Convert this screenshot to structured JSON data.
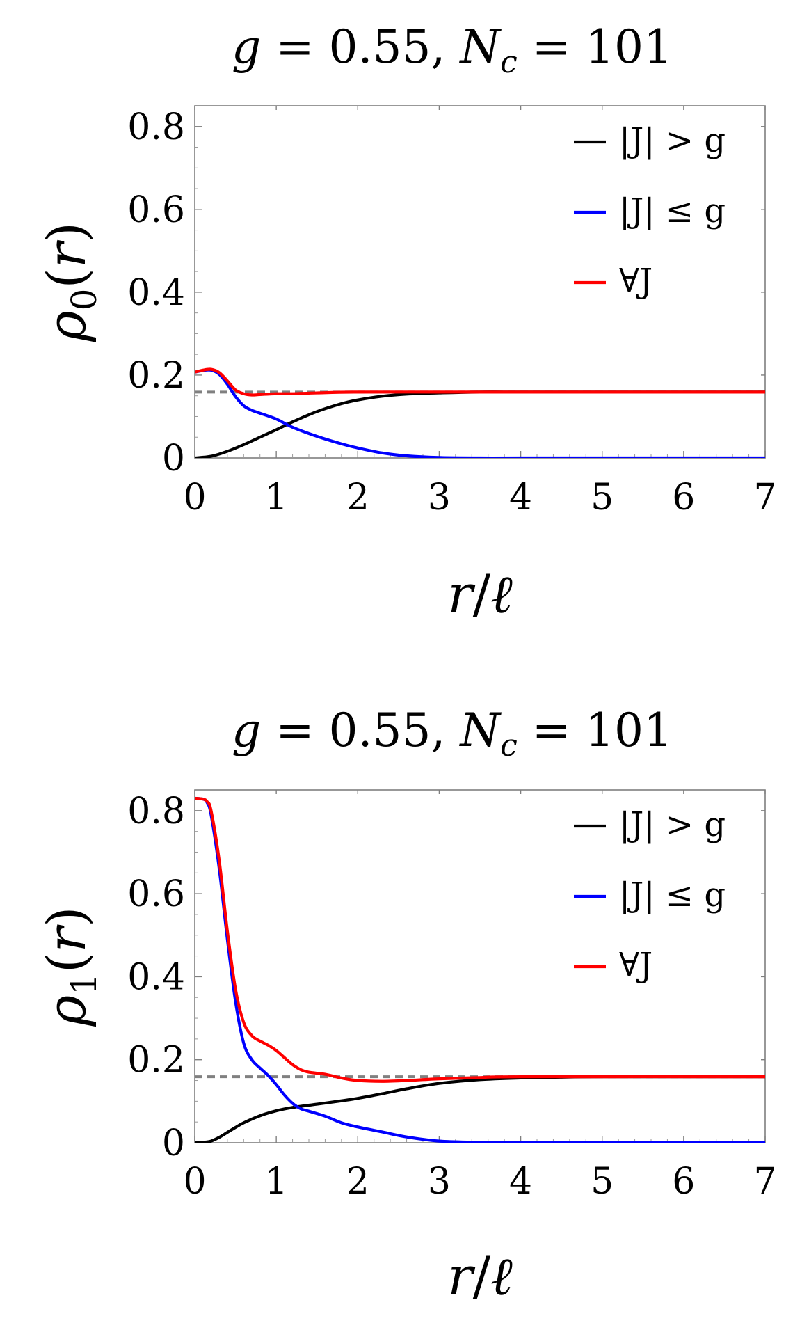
{
  "chart_data": [
    {
      "type": "line",
      "title": "g = 0.55, N_c = 101",
      "title_parts": {
        "g": "g",
        "eq1": " = 0.55, ",
        "N": "N",
        "sub": "c",
        "eq2": " = 101"
      },
      "xlabel": "r/ℓ",
      "xlabel_parts": {
        "r": "r",
        "slash": "/",
        "ell": "ℓ"
      },
      "ylabel": "ρ0(r)",
      "ylabel_parts": {
        "rho": "ρ",
        "sub": "0",
        "open": "(",
        "r": "r",
        "close": ")"
      },
      "xlim": [
        0,
        7
      ],
      "ylim": [
        0,
        0.85
      ],
      "xticks": [
        0,
        1,
        2,
        3,
        4,
        5,
        6,
        7
      ],
      "xtick_labels": [
        "0",
        "1",
        "2",
        "3",
        "4",
        "5",
        "6",
        "7"
      ],
      "yticks": [
        0,
        0.2,
        0.4,
        0.6,
        0.8
      ],
      "ytick_labels": [
        "0",
        "0.2",
        "0.4",
        "0.6",
        "0.8"
      ],
      "grid": false,
      "legend_position": "top-right",
      "reference_line": {
        "y": 0.159,
        "style": "dashed",
        "color": "#808080"
      },
      "series": [
        {
          "name": "|J| > g",
          "color": "#000000",
          "x": [
            0,
            0.2,
            0.4,
            0.6,
            0.8,
            1.0,
            1.2,
            1.5,
            1.8,
            2.0,
            2.3,
            2.6,
            3.0,
            3.5,
            4.0,
            5.0,
            6.0,
            7.0
          ],
          "y": [
            0,
            0.004,
            0.016,
            0.032,
            0.05,
            0.068,
            0.087,
            0.112,
            0.131,
            0.14,
            0.149,
            0.154,
            0.157,
            0.159,
            0.159,
            0.159,
            0.159,
            0.159
          ]
        },
        {
          "name": "|J| ≤ g",
          "color": "#0000ff",
          "x": [
            0,
            0.1,
            0.2,
            0.3,
            0.4,
            0.5,
            0.6,
            0.7,
            0.8,
            1.0,
            1.2,
            1.5,
            1.8,
            2.0,
            2.3,
            2.6,
            3.0,
            3.5,
            4.0,
            5.0,
            7.0
          ],
          "y": [
            0.207,
            0.211,
            0.212,
            0.202,
            0.178,
            0.148,
            0.126,
            0.115,
            0.108,
            0.094,
            0.074,
            0.052,
            0.034,
            0.024,
            0.012,
            0.005,
            0.001,
            0,
            0,
            0,
            0
          ]
        },
        {
          "name": "∀J",
          "color": "#ff0000",
          "x": [
            0,
            0.1,
            0.2,
            0.3,
            0.4,
            0.5,
            0.6,
            0.7,
            0.8,
            1.0,
            1.2,
            1.5,
            2.0,
            3.0,
            4.0,
            7.0
          ],
          "y": [
            0.207,
            0.212,
            0.214,
            0.206,
            0.186,
            0.164,
            0.155,
            0.152,
            0.153,
            0.155,
            0.155,
            0.157,
            0.159,
            0.159,
            0.159,
            0.159
          ]
        }
      ]
    },
    {
      "type": "line",
      "title": "g = 0.55, N_c = 101",
      "title_parts": {
        "g": "g",
        "eq1": " = 0.55, ",
        "N": "N",
        "sub": "c",
        "eq2": " = 101"
      },
      "xlabel": "r/ℓ",
      "xlabel_parts": {
        "r": "r",
        "slash": "/",
        "ell": "ℓ"
      },
      "ylabel": "ρ1(r)",
      "ylabel_parts": {
        "rho": "ρ",
        "sub": "1",
        "open": "(",
        "r": "r",
        "close": ")"
      },
      "xlim": [
        0,
        7
      ],
      "ylim": [
        0,
        0.85
      ],
      "xticks": [
        0,
        1,
        2,
        3,
        4,
        5,
        6,
        7
      ],
      "xtick_labels": [
        "0",
        "1",
        "2",
        "3",
        "4",
        "5",
        "6",
        "7"
      ],
      "yticks": [
        0,
        0.2,
        0.4,
        0.6,
        0.8
      ],
      "ytick_labels": [
        "0",
        "0.2",
        "0.4",
        "0.6",
        "0.8"
      ],
      "grid": false,
      "legend_position": "top-right",
      "reference_line": {
        "y": 0.159,
        "style": "dashed",
        "color": "#808080"
      },
      "series": [
        {
          "name": "|J| > g",
          "color": "#000000",
          "x": [
            0,
            0.1,
            0.2,
            0.3,
            0.4,
            0.5,
            0.6,
            0.8,
            1.0,
            1.2,
            1.5,
            1.8,
            2.0,
            2.3,
            2.6,
            3.0,
            3.5,
            4.0,
            4.5,
            5.0,
            7.0
          ],
          "y": [
            0,
            0.001,
            0.004,
            0.013,
            0.025,
            0.037,
            0.048,
            0.065,
            0.077,
            0.085,
            0.093,
            0.101,
            0.107,
            0.118,
            0.13,
            0.143,
            0.152,
            0.156,
            0.158,
            0.159,
            0.159
          ]
        },
        {
          "name": "|J| ≤ g",
          "color": "#0000ff",
          "x": [
            0,
            0.1,
            0.15,
            0.2,
            0.3,
            0.4,
            0.5,
            0.6,
            0.7,
            0.8,
            0.9,
            1.0,
            1.1,
            1.2,
            1.3,
            1.4,
            1.6,
            1.8,
            2.0,
            2.3,
            2.6,
            3.0,
            3.5,
            4.0,
            7.0
          ],
          "y": [
            0.83,
            0.828,
            0.82,
            0.79,
            0.66,
            0.49,
            0.34,
            0.24,
            0.2,
            0.18,
            0.162,
            0.14,
            0.115,
            0.095,
            0.082,
            0.076,
            0.064,
            0.048,
            0.038,
            0.026,
            0.014,
            0.004,
            0.001,
            0,
            0
          ]
        },
        {
          "name": "∀J",
          "color": "#ff0000",
          "x": [
            0,
            0.1,
            0.15,
            0.2,
            0.3,
            0.4,
            0.5,
            0.6,
            0.7,
            0.8,
            0.9,
            1.0,
            1.1,
            1.2,
            1.3,
            1.4,
            1.6,
            1.8,
            2.0,
            2.3,
            2.6,
            3.0,
            3.5,
            4.0,
            7.0
          ],
          "y": [
            0.83,
            0.828,
            0.822,
            0.8,
            0.68,
            0.51,
            0.37,
            0.29,
            0.258,
            0.245,
            0.235,
            0.222,
            0.205,
            0.188,
            0.176,
            0.17,
            0.165,
            0.156,
            0.15,
            0.148,
            0.15,
            0.154,
            0.157,
            0.159,
            0.159
          ]
        }
      ]
    }
  ]
}
